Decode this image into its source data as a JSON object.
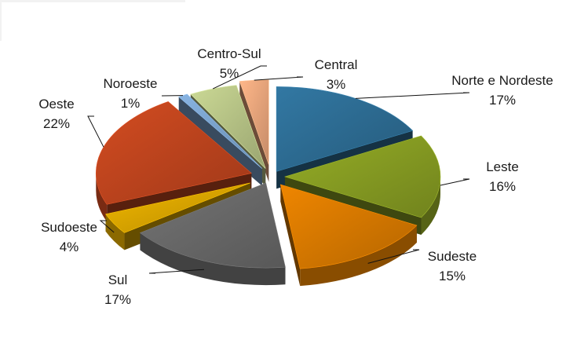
{
  "chart_data": {
    "type": "pie",
    "style": "3d-exploded",
    "slices": [
      {
        "label": "Norte e Nordeste",
        "value": 17,
        "percent_label": "17%",
        "color": "#2e6f97"
      },
      {
        "label": "Leste",
        "value": 16,
        "percent_label": "16%",
        "color": "#8aa023"
      },
      {
        "label": "Sudeste",
        "value": 15,
        "percent_label": "15%",
        "color": "#dd7c00"
      },
      {
        "label": "Sul",
        "value": 17,
        "percent_label": "17%",
        "color": "#6b6b6b"
      },
      {
        "label": "Sudoeste",
        "value": 4,
        "percent_label": "4%",
        "color": "#e0aa00"
      },
      {
        "label": "Oeste",
        "value": 22,
        "percent_label": "22%",
        "color": "#c3461f"
      },
      {
        "label": "Noroeste",
        "value": 1,
        "percent_label": "1%",
        "color": "#7ea7d2"
      },
      {
        "label": "Centro-Sul",
        "value": 5,
        "percent_label": "5%",
        "color": "#bcc98a"
      },
      {
        "label": "Central",
        "value": 3,
        "percent_label": "3%",
        "color": "#f0a97f"
      }
    ],
    "legend": "none"
  }
}
